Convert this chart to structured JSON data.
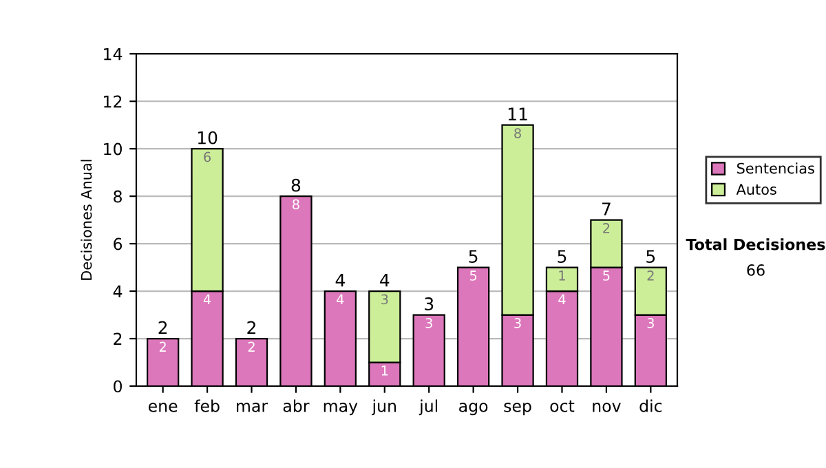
{
  "chart_data": {
    "type": "bar",
    "stacked": true,
    "ylabel": "Decisiones Anual",
    "categories": [
      "ene",
      "feb",
      "mar",
      "abr",
      "may",
      "jun",
      "jul",
      "ago",
      "sep",
      "oct",
      "nov",
      "dic"
    ],
    "series": [
      {
        "name": "Sentencias",
        "color": "#dd77bb",
        "values": [
          2,
          4,
          2,
          8,
          4,
          1,
          3,
          5,
          3,
          4,
          5,
          3
        ],
        "value_labels": [
          "2",
          "4",
          "2",
          "8",
          "4",
          "1",
          "3",
          "5",
          "3",
          "4",
          "5",
          "3"
        ]
      },
      {
        "name": "Autos",
        "color": "#ccee99",
        "values": [
          0,
          6,
          0,
          0,
          0,
          3,
          0,
          0,
          8,
          1,
          2,
          2
        ],
        "value_labels": [
          null,
          "6",
          null,
          null,
          null,
          "3",
          null,
          null,
          "8",
          "1",
          "2",
          "2"
        ]
      }
    ],
    "totals": [
      "2",
      "10",
      "2",
      "8",
      "4",
      "4",
      "3",
      "5",
      "11",
      "5",
      "7",
      "5"
    ],
    "ylim": [
      0,
      14
    ],
    "yticks": [
      0,
      2,
      4,
      6,
      8,
      10,
      12,
      14
    ],
    "grid": "y",
    "legend": "right",
    "annotations": [
      "Total Decisiones",
      "66"
    ]
  }
}
